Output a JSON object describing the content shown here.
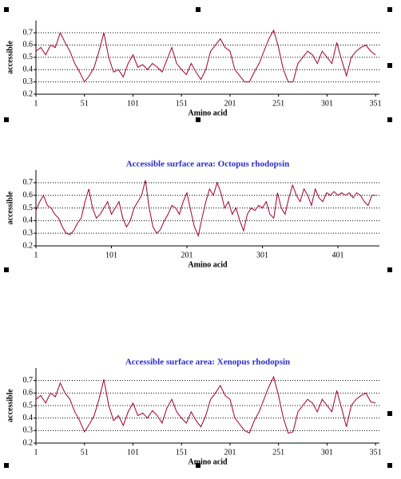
{
  "chart_data": [
    {
      "type": "line",
      "xlabel": "Amino acid",
      "ylabel": "accessible",
      "x": [
        1,
        6,
        11,
        16,
        21,
        26,
        31,
        36,
        41,
        46,
        51,
        56,
        61,
        66,
        71,
        76,
        81,
        86,
        91,
        96,
        101,
        106,
        111,
        116,
        121,
        126,
        131,
        136,
        141,
        146,
        151,
        156,
        161,
        166,
        171,
        176,
        181,
        186,
        191,
        196,
        201,
        206,
        211,
        216,
        221,
        226,
        231,
        236,
        241,
        246,
        251,
        256,
        261,
        266,
        271,
        276,
        281,
        286,
        291,
        296,
        301,
        306,
        311,
        316,
        321,
        326,
        331,
        336,
        341,
        346,
        351
      ],
      "series": [
        {
          "color": "#a0002a",
          "values": [
            0.55,
            0.58,
            0.52,
            0.6,
            0.58,
            0.7,
            0.62,
            0.55,
            0.45,
            0.38,
            0.3,
            0.35,
            0.42,
            0.55,
            0.7,
            0.5,
            0.38,
            0.4,
            0.34,
            0.45,
            0.52,
            0.42,
            0.44,
            0.4,
            0.45,
            0.42,
            0.38,
            0.48,
            0.58,
            0.45,
            0.4,
            0.36,
            0.45,
            0.38,
            0.32,
            0.4,
            0.55,
            0.6,
            0.65,
            0.58,
            0.55,
            0.4,
            0.35,
            0.3,
            0.3,
            0.38,
            0.45,
            0.55,
            0.65,
            0.72,
            0.58,
            0.4,
            0.3,
            0.3,
            0.45,
            0.5,
            0.55,
            0.52,
            0.45,
            0.55,
            0.5,
            0.45,
            0.62,
            0.48,
            0.35,
            0.5,
            0.55,
            0.58,
            0.6,
            0.55,
            0.52
          ]
        }
      ],
      "xlim": [
        1,
        355
      ],
      "xticks": [
        1,
        51,
        101,
        151,
        201,
        251,
        301,
        351
      ],
      "ylim": [
        0.2,
        0.8
      ],
      "yticks": [
        0.2,
        0.3,
        0.4,
        0.5,
        0.6,
        0.7
      ],
      "grid": true
    },
    {
      "type": "line",
      "title": "Accessible surface area: Octopus rhodopsin",
      "xlabel": "Amino acid",
      "ylabel": "accessible",
      "x": [
        1,
        6,
        11,
        16,
        21,
        26,
        31,
        36,
        41,
        46,
        51,
        56,
        61,
        66,
        71,
        76,
        81,
        86,
        91,
        96,
        101,
        106,
        111,
        116,
        121,
        126,
        131,
        136,
        141,
        146,
        151,
        156,
        161,
        166,
        171,
        176,
        181,
        186,
        191,
        196,
        201,
        206,
        211,
        216,
        221,
        226,
        231,
        236,
        241,
        246,
        251,
        256,
        261,
        266,
        271,
        276,
        281,
        286,
        291,
        296,
        301,
        306,
        311,
        316,
        321,
        326,
        331,
        336,
        341,
        346,
        351,
        356,
        361,
        366,
        371,
        376,
        381,
        386,
        391,
        396,
        401,
        406,
        411,
        416,
        421,
        426,
        431,
        436,
        441,
        446,
        451
      ],
      "series": [
        {
          "color": "#a0002a",
          "values": [
            0.48,
            0.55,
            0.6,
            0.52,
            0.5,
            0.45,
            0.42,
            0.35,
            0.3,
            0.29,
            0.32,
            0.38,
            0.42,
            0.55,
            0.65,
            0.5,
            0.42,
            0.45,
            0.5,
            0.55,
            0.45,
            0.5,
            0.55,
            0.42,
            0.35,
            0.4,
            0.5,
            0.55,
            0.6,
            0.72,
            0.5,
            0.35,
            0.3,
            0.33,
            0.4,
            0.45,
            0.52,
            0.5,
            0.45,
            0.55,
            0.62,
            0.48,
            0.35,
            0.28,
            0.42,
            0.55,
            0.65,
            0.6,
            0.7,
            0.62,
            0.5,
            0.55,
            0.45,
            0.5,
            0.4,
            0.32,
            0.45,
            0.5,
            0.48,
            0.52,
            0.5,
            0.55,
            0.45,
            0.42,
            0.62,
            0.5,
            0.45,
            0.58,
            0.68,
            0.6,
            0.55,
            0.65,
            0.6,
            0.52,
            0.65,
            0.58,
            0.55,
            0.62,
            0.6,
            0.63,
            0.6,
            0.62,
            0.6,
            0.62,
            0.58,
            0.62,
            0.6,
            0.55,
            0.52,
            0.6,
            0.6
          ]
        }
      ],
      "xlim": [
        1,
        456
      ],
      "xticks": [
        1,
        101,
        201,
        301,
        401
      ],
      "ylim": [
        0.2,
        0.8
      ],
      "yticks": [
        0.2,
        0.3,
        0.4,
        0.5,
        0.6,
        0.7
      ],
      "grid": true
    },
    {
      "type": "line",
      "title": "Accessible surface area: Xenopus rhodopsin",
      "xlabel": "Amino acid",
      "ylabel": "accessible",
      "x": [
        1,
        6,
        11,
        16,
        21,
        26,
        31,
        36,
        41,
        46,
        51,
        56,
        61,
        66,
        71,
        76,
        81,
        86,
        91,
        96,
        101,
        106,
        111,
        116,
        121,
        126,
        131,
        136,
        141,
        146,
        151,
        156,
        161,
        166,
        171,
        176,
        181,
        186,
        191,
        196,
        201,
        206,
        211,
        216,
        221,
        226,
        231,
        236,
        241,
        246,
        251,
        256,
        261,
        266,
        271,
        276,
        281,
        286,
        291,
        296,
        301,
        306,
        311,
        316,
        321,
        326,
        331,
        336,
        341,
        346,
        351
      ],
      "series": [
        {
          "color": "#a0002a",
          "values": [
            0.55,
            0.58,
            0.52,
            0.6,
            0.57,
            0.68,
            0.6,
            0.55,
            0.45,
            0.38,
            0.29,
            0.35,
            0.42,
            0.55,
            0.71,
            0.5,
            0.38,
            0.42,
            0.34,
            0.45,
            0.52,
            0.42,
            0.44,
            0.4,
            0.46,
            0.42,
            0.36,
            0.48,
            0.55,
            0.45,
            0.4,
            0.36,
            0.45,
            0.38,
            0.33,
            0.42,
            0.55,
            0.6,
            0.66,
            0.58,
            0.55,
            0.4,
            0.35,
            0.3,
            0.28,
            0.38,
            0.45,
            0.55,
            0.65,
            0.73,
            0.58,
            0.4,
            0.28,
            0.29,
            0.45,
            0.5,
            0.55,
            0.52,
            0.45,
            0.55,
            0.5,
            0.45,
            0.62,
            0.48,
            0.33,
            0.5,
            0.55,
            0.58,
            0.6,
            0.53,
            0.52
          ]
        }
      ],
      "xlim": [
        1,
        355
      ],
      "xticks": [
        1,
        51,
        101,
        151,
        201,
        251,
        301,
        351
      ],
      "ylim": [
        0.2,
        0.8
      ],
      "yticks": [
        0.2,
        0.3,
        0.4,
        0.5,
        0.6,
        0.7
      ],
      "grid": true
    }
  ]
}
